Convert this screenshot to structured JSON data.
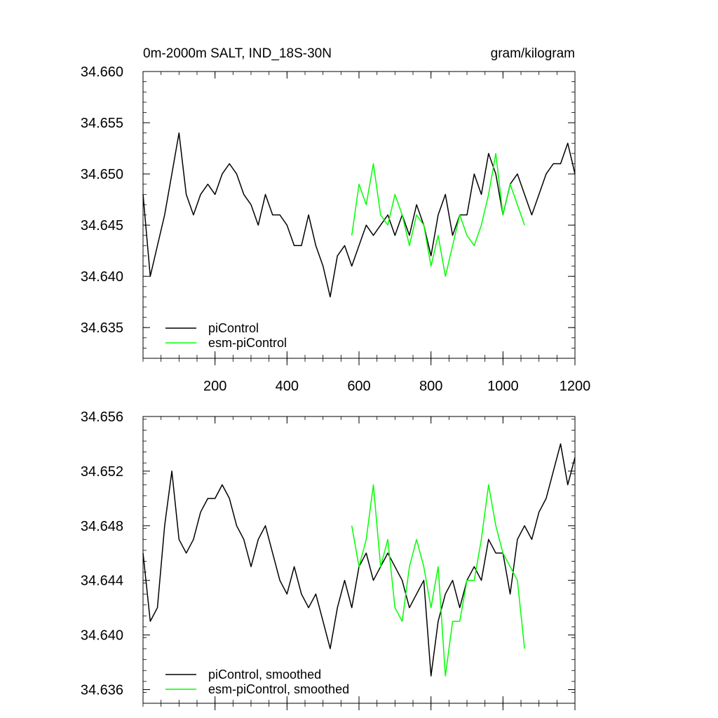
{
  "chart_data": [
    {
      "type": "line",
      "title_left": "0m-2000m SALT, IND_18S-30N",
      "title_right": "gram/kilogram",
      "xlabel": "",
      "ylabel": "",
      "xlim": [
        0,
        1200
      ],
      "ylim": [
        34.632,
        34.66
      ],
      "x_ticks": [
        200,
        400,
        600,
        800,
        1000,
        1200
      ],
      "y_ticks": [
        34.635,
        34.64,
        34.645,
        34.65,
        34.655,
        34.66
      ],
      "y_tick_labels": [
        "34.635",
        "34.640",
        "34.645",
        "34.650",
        "34.655",
        "34.660"
      ],
      "x_tick_labels": [
        "200",
        "400",
        "600",
        "800",
        "1000",
        "1200"
      ],
      "show_x_tick_labels": true,
      "grid": false,
      "legend_position": "bottom-left",
      "series": [
        {
          "name": "piControl",
          "color": "#000000",
          "x_start": 0,
          "x_step": 20,
          "values": [
            34.648,
            34.64,
            34.643,
            34.646,
            34.65,
            34.654,
            34.648,
            34.646,
            34.648,
            34.649,
            34.648,
            34.65,
            34.651,
            34.65,
            34.648,
            34.647,
            34.645,
            34.648,
            34.646,
            34.646,
            34.645,
            34.643,
            34.643,
            34.646,
            34.643,
            34.641,
            34.638,
            34.642,
            34.643,
            34.641,
            34.643,
            34.645,
            34.644,
            34.645,
            34.646,
            34.644,
            34.646,
            34.644,
            34.647,
            34.645,
            34.642,
            34.646,
            34.648,
            34.644,
            34.646,
            34.646,
            34.65,
            34.648,
            34.652,
            34.65,
            34.646,
            34.649,
            34.65,
            34.648,
            34.646,
            34.648,
            34.65,
            34.651,
            34.651,
            34.653,
            34.65
          ],
          "note": "values sampled every 20 units from 0 to 1200"
        },
        {
          "name": "esm-piControl",
          "color": "#00ff00",
          "x_start": 580,
          "x_step": 20,
          "values": [
            34.644,
            34.649,
            34.647,
            34.651,
            34.646,
            34.645,
            34.648,
            34.646,
            34.643,
            34.646,
            34.645,
            34.641,
            34.644,
            34.64,
            34.643,
            34.646,
            34.644,
            34.643,
            34.645,
            34.648,
            34.652,
            34.646,
            34.649,
            34.647,
            34.645
          ],
          "note": "values sampled every 20 units from 580 to 1060"
        }
      ],
      "legend": [
        "piControl",
        "esm-piControl"
      ]
    },
    {
      "type": "line",
      "title_left": "",
      "title_right": "",
      "xlabel": "",
      "ylabel": "",
      "xlim": [
        0,
        1200
      ],
      "ylim": [
        34.635,
        34.656
      ],
      "x_ticks": [
        200,
        400,
        600,
        800,
        1000,
        1200
      ],
      "y_ticks": [
        34.636,
        34.64,
        34.644,
        34.648,
        34.652,
        34.656
      ],
      "y_tick_labels": [
        "34.636",
        "34.640",
        "34.644",
        "34.648",
        "34.652",
        "34.656"
      ],
      "x_tick_labels": [],
      "show_x_tick_labels": false,
      "grid": false,
      "legend_position": "bottom-left",
      "series": [
        {
          "name": "piControl, smoothed",
          "color": "#000000",
          "x_start": 0,
          "x_step": 20,
          "values": [
            34.646,
            34.641,
            34.642,
            34.648,
            34.652,
            34.647,
            34.646,
            34.647,
            34.649,
            34.65,
            34.65,
            34.651,
            34.65,
            34.648,
            34.647,
            34.645,
            34.647,
            34.648,
            34.646,
            34.644,
            34.643,
            34.645,
            34.643,
            34.642,
            34.643,
            34.641,
            34.639,
            34.642,
            34.644,
            34.642,
            34.645,
            34.646,
            34.644,
            34.645,
            34.646,
            34.645,
            34.644,
            34.642,
            34.643,
            34.644,
            34.637,
            34.641,
            34.643,
            34.644,
            34.642,
            34.644,
            34.645,
            34.644,
            34.647,
            34.646,
            34.646,
            34.643,
            34.647,
            34.648,
            34.647,
            34.649,
            34.65,
            34.652,
            34.654,
            34.651,
            34.653
          ]
        },
        {
          "name": "esm-piControl, smoothed",
          "color": "#00ff00",
          "x_start": 580,
          "x_step": 20,
          "values": [
            34.648,
            34.645,
            34.647,
            34.651,
            34.645,
            34.647,
            34.642,
            34.641,
            34.645,
            34.647,
            34.645,
            34.642,
            34.645,
            34.637,
            34.641,
            34.641,
            34.644,
            34.644,
            34.647,
            34.651,
            34.648,
            34.646,
            34.645,
            34.644,
            34.639
          ],
          "note": "smoothed values sampled every 20 units from 580 to 1060"
        }
      ],
      "legend": [
        "piControl, smoothed",
        "esm-piControl, smoothed"
      ]
    }
  ]
}
